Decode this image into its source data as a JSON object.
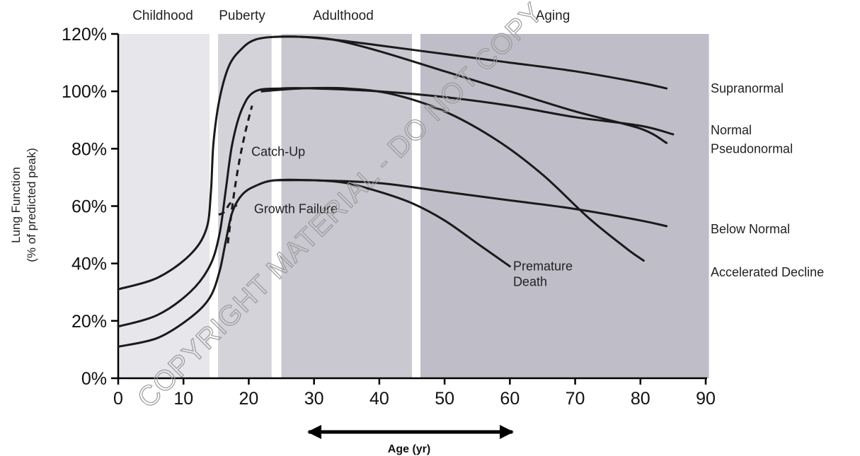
{
  "chart_data": {
    "type": "line",
    "title": "",
    "xlabel": "Age (yr)",
    "ylabel": "Lung Function",
    "ylabel_sub": "(% of predicted peak)",
    "xlim": [
      0,
      90
    ],
    "ylim": [
      0,
      120
    ],
    "xticks": [
      "0",
      "10",
      "20",
      "30",
      "40",
      "50",
      "60",
      "70",
      "80",
      "90"
    ],
    "yticks": [
      "0%",
      "20%",
      "40%",
      "60%",
      "80%",
      "100%",
      "120%"
    ],
    "grid": false,
    "phases": [
      {
        "label": "Childhood",
        "x": [
          0,
          14
        ],
        "color": "#e7e7eb"
      },
      {
        "label": "Puberty",
        "x": [
          15.3,
          23.5
        ],
        "color": "#d4d3da"
      },
      {
        "label": "Adulthood",
        "x": [
          25,
          45
        ],
        "color": "#c9c8d0"
      },
      {
        "label": "Aging",
        "x": [
          46.3,
          90.5
        ],
        "color": "#bfbec8"
      }
    ],
    "series": [
      {
        "name": "Supranormal",
        "style": "solid",
        "x": [
          0,
          6,
          11,
          13.5,
          14.2,
          14.6,
          15.5,
          17,
          19,
          21,
          24,
          28,
          33,
          40,
          50,
          60,
          70,
          80,
          84
        ],
        "y": [
          31,
          35,
          43,
          52,
          65,
          82,
          97,
          109,
          115,
          118,
          119,
          119,
          118,
          116,
          113,
          110,
          107,
          103,
          101
        ]
      },
      {
        "name": "Normal",
        "style": "solid",
        "x": [
          0,
          6,
          11,
          14,
          15.5,
          16.5,
          17.5,
          19,
          21,
          25,
          30,
          40,
          50,
          60,
          70,
          80,
          85
        ],
        "y": [
          18,
          22,
          30,
          39,
          50,
          66,
          82,
          94,
          100,
          101,
          101,
          100,
          98,
          95,
          91,
          88,
          85
        ]
      },
      {
        "name": "Pseudonormal",
        "style": "solid",
        "x": [
          24,
          28,
          33,
          40,
          50,
          60,
          70,
          80,
          84
        ],
        "y": [
          119,
          119,
          118,
          114,
          107,
          100,
          93,
          87,
          82
        ]
      },
      {
        "name": "Below Normal",
        "style": "solid",
        "x": [
          0,
          6,
          11,
          14,
          15.5,
          16.5,
          17.5,
          19,
          21,
          24,
          30,
          40,
          50,
          60,
          70,
          80,
          84
        ],
        "y": [
          11,
          14,
          21,
          28,
          37,
          48,
          58,
          64,
          67,
          69,
          69,
          68,
          65,
          62,
          59,
          55,
          53
        ]
      },
      {
        "name": "Accelerated Decline",
        "style": "solid",
        "x": [
          22,
          28,
          35,
          42,
          50,
          58,
          65,
          72,
          78,
          80.5
        ],
        "y": [
          100,
          101,
          101,
          99,
          93,
          83,
          71,
          56,
          45,
          41
        ]
      },
      {
        "name": "Premature Death",
        "style": "solid",
        "x": [
          24,
          30,
          35,
          40,
          45,
          50,
          55,
          60
        ],
        "y": [
          69,
          69,
          68,
          65,
          61,
          55,
          47,
          39
        ]
      },
      {
        "name": "Catch-Up",
        "style": "dashed",
        "x": [
          16.8,
          17.6,
          18.5,
          19.5,
          20.5
        ],
        "y": [
          47,
          62,
          75,
          86,
          95
        ]
      },
      {
        "name": "Growth Failure",
        "style": "dashed",
        "x": [
          15.4,
          16.3,
          17.2,
          18.2
        ],
        "y": [
          57,
          58,
          61,
          60
        ]
      }
    ],
    "line_labels": [
      {
        "text": "Supranormal",
        "y": 101
      },
      {
        "text": "Normal",
        "y": 86.5
      },
      {
        "text": "Pseudonormal",
        "y": 80
      },
      {
        "text": "Below Normal",
        "y": 52
      },
      {
        "text": "Accelerated Decline",
        "y": 37
      }
    ],
    "annotations": [
      {
        "text": "Catch-Up",
        "x": 20.4,
        "y": 79
      },
      {
        "text": "Growth Failure",
        "x": 20.8,
        "y": 59
      },
      {
        "text": "Premature Death",
        "lines": [
          "Premature",
          "Death"
        ],
        "x": 60.5,
        "y": 39
      }
    ],
    "watermark": "COPYRIGHT MATERIAL - DO NOT COPY"
  }
}
